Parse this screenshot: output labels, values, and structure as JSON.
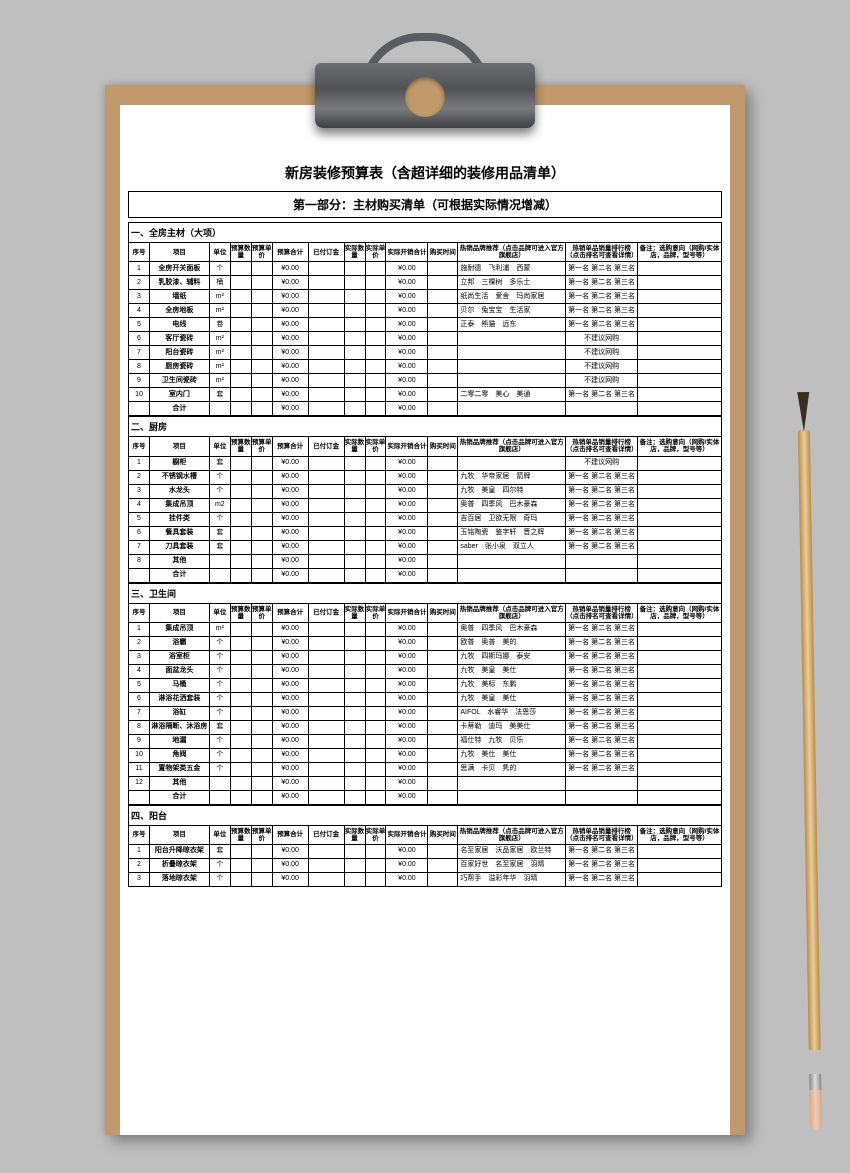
{
  "title": "新房装修预算表（含超详细的装修用品清单）",
  "subtitle": "第一部分：主材购买清单（可根据实际情况增减）",
  "columns": [
    "序号",
    "项目",
    "单位",
    "预算数量",
    "预算单价",
    "预算合计",
    "已付订金",
    "实际数量",
    "实际单价",
    "实际开销合计",
    "购买时间",
    "热销品牌推荐（点击品牌可进入官方旗舰店）",
    "热销单品销量排行榜（点击排名可查看详情）",
    "备注：选购意向（网购/实体店，品牌，型号等）"
  ],
  "zero": "¥0.00",
  "ranks": "第一名 第二名 第三名",
  "noBuy": "不建议网购",
  "sections": [
    {
      "title": "一、全房主材（大项）",
      "rows": [
        {
          "n": 1,
          "item": "全房开关面板",
          "unit": "个",
          "brand": "施耐德　飞利浦　西蒙",
          "rank": true
        },
        {
          "n": 2,
          "item": "乳胶漆、辅料",
          "unit": "桶",
          "brand": "立邦　三棵树　多乐士",
          "rank": true
        },
        {
          "n": 3,
          "item": "墙纸",
          "unit": "m²",
          "brand": "纸尚生活　爱舍　玛尚家居",
          "rank": true
        },
        {
          "n": 4,
          "item": "全房地板",
          "unit": "m²",
          "brand": "贝尔　兔宝宝　生活家",
          "rank": true
        },
        {
          "n": 5,
          "item": "电线",
          "unit": "卷",
          "brand": "正泰　熊猫　远东",
          "rank": true
        },
        {
          "n": 6,
          "item": "客厅瓷砖",
          "unit": "m²",
          "brand": "",
          "noBuy": true
        },
        {
          "n": 7,
          "item": "阳台瓷砖",
          "unit": "m²",
          "brand": "",
          "noBuy": true
        },
        {
          "n": 8,
          "item": "厨房瓷砖",
          "unit": "m²",
          "brand": "",
          "noBuy": true
        },
        {
          "n": 9,
          "item": "卫生间瓷砖",
          "unit": "m²",
          "brand": "",
          "noBuy": true
        },
        {
          "n": 10,
          "item": "室内门",
          "unit": "套",
          "brand": "二零二零　美心　美通",
          "rank": true
        },
        {
          "n": "",
          "item": "合计",
          "unit": "",
          "brand": "",
          "sum": true
        }
      ]
    },
    {
      "title": "二、厨房",
      "rows": [
        {
          "n": 1,
          "item": "橱柜",
          "unit": "套",
          "brand": "",
          "noBuy": true
        },
        {
          "n": 2,
          "item": "不锈钢水槽",
          "unit": "个",
          "brand": "九牧　华帝家居　箭牌",
          "rank": true
        },
        {
          "n": 3,
          "item": "水龙头",
          "unit": "个",
          "brand": "九牧　美皇　四尔特",
          "rank": true
        },
        {
          "n": 4,
          "item": "集成吊顶",
          "unit": "m2",
          "brand": "奥普　四季风　巴木豪森",
          "rank": true
        },
        {
          "n": 5,
          "item": "挂件类",
          "unit": "个",
          "brand": "吉百居　卫欲无限　奇玛",
          "rank": true
        },
        {
          "n": 6,
          "item": "餐具套装",
          "unit": "套",
          "brand": "玉铭陶瓷　鉴字轩　晋之辉",
          "rank": true
        },
        {
          "n": 7,
          "item": "刀具套装",
          "unit": "套",
          "brand": "saber　张小泉　双立人",
          "rank": true
        },
        {
          "n": 8,
          "item": "其他",
          "unit": "",
          "brand": ""
        },
        {
          "n": "",
          "item": "合计",
          "unit": "",
          "brand": "",
          "sum": true
        }
      ]
    },
    {
      "title": "三、卫生间",
      "rows": [
        {
          "n": 1,
          "item": "集成吊顶",
          "unit": "m²",
          "brand": "奥普　四季风　巴木豪森",
          "rank": true
        },
        {
          "n": 2,
          "item": "浴霸",
          "unit": "个",
          "brand": "欧普　奥普　美的",
          "rank": true
        },
        {
          "n": 3,
          "item": "浴室柜",
          "unit": "个",
          "brand": "九牧　四斯玛娜　泰安",
          "rank": true
        },
        {
          "n": 4,
          "item": "面盆龙头",
          "unit": "个",
          "brand": "九牧　美皇　美仕",
          "rank": true
        },
        {
          "n": 5,
          "item": "马桶",
          "unit": "个",
          "brand": "九牧　美标　东鹏",
          "rank": true
        },
        {
          "n": 6,
          "item": "淋浴花洒套装",
          "unit": "个",
          "brand": "九牧　美皇　美仕",
          "rank": true
        },
        {
          "n": 7,
          "item": "浴缸",
          "unit": "个",
          "brand": "AIFOL　水睿华　法恩莎",
          "rank": true
        },
        {
          "n": 8,
          "item": "淋浴隔断、沐浴房",
          "unit": "套",
          "brand": "卡蒂勒　迪玛　美美仕",
          "rank": true
        },
        {
          "n": 9,
          "item": "地漏",
          "unit": "个",
          "brand": "福仕特　九牧　贝乐",
          "rank": true
        },
        {
          "n": 10,
          "item": "角阀",
          "unit": "个",
          "brand": "九牧　美仕　美仕",
          "rank": true
        },
        {
          "n": 11,
          "item": "置物架类五金",
          "unit": "个",
          "brand": "思满　卡贝　隽的",
          "rank": true
        },
        {
          "n": 12,
          "item": "其他",
          "unit": "",
          "brand": ""
        },
        {
          "n": "",
          "item": "合计",
          "unit": "",
          "brand": "",
          "sum": true
        }
      ]
    },
    {
      "title": "四、阳台",
      "rows": [
        {
          "n": 1,
          "item": "阳台升降晾衣架",
          "unit": "套",
          "brand": "名至家居　沃品家居　欧兰特",
          "rank": true
        },
        {
          "n": 2,
          "item": "折叠晾衣架",
          "unit": "个",
          "brand": "百家好世　名至家居　羽晴",
          "rank": true
        },
        {
          "n": 3,
          "item": "落地晾衣架",
          "unit": "个",
          "brand": "巧帮手　溢彩年华　羽晴",
          "rank": true
        }
      ]
    }
  ]
}
